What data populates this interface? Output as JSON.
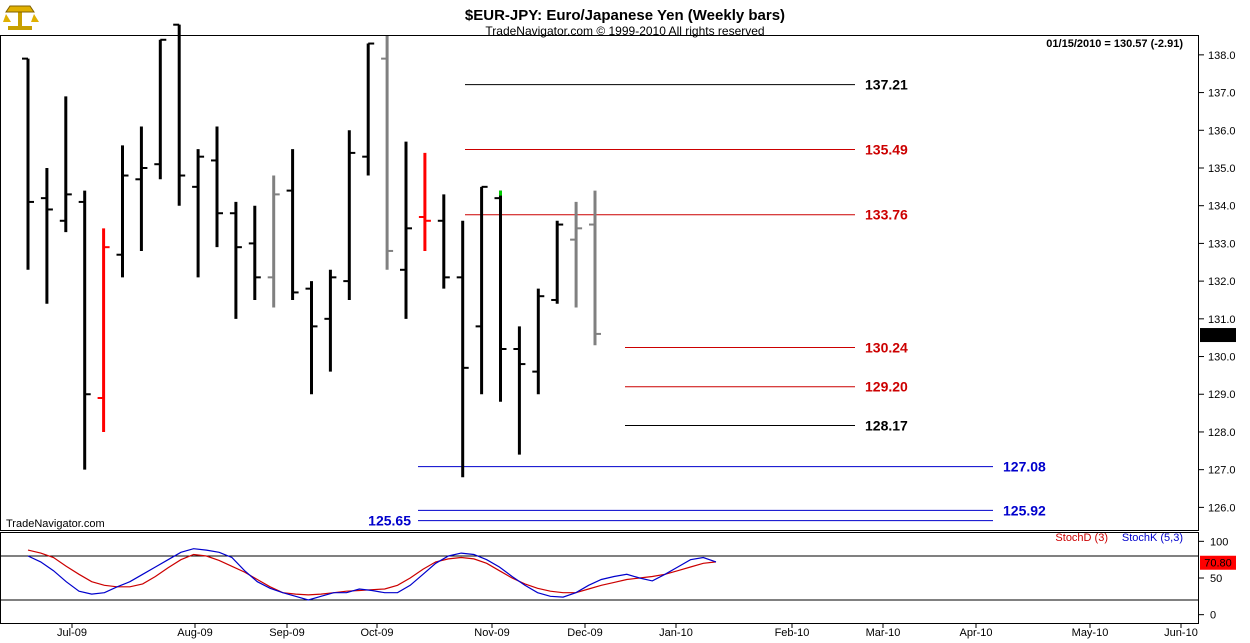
{
  "header": {
    "title": "$EUR-JPY:  Euro/Japanese Yen  (Weekly bars)",
    "subtitle": "TradeNavigator.com © 1999-2010 All rights reserved",
    "last_quote": "01/15/2010 = 130.57 (-2.91)",
    "watermark": "TradeNavigator.com",
    "logo_icon": "scales-logo-icon"
  },
  "chart_data": [
    {
      "type": "ohlc",
      "title": "$EUR-JPY:  Euro/Japanese Yen  (Weekly bars)",
      "ylim": [
        125.4,
        138.5
      ],
      "y_ticks": [
        "126.0",
        "127.0",
        "128.0",
        "129.0",
        "130.0",
        "131.0",
        "132.0",
        "133.0",
        "134.0",
        "135.0",
        "136.0",
        "137.0",
        "138.0"
      ],
      "x_labels": [
        "Jul-09",
        "Aug-09",
        "Sep-09",
        "Oct-09",
        "Nov-09",
        "Dec-09",
        "Jan-10",
        "Feb-10",
        "Mar-10",
        "Apr-10",
        "May-10",
        "Jun-10"
      ],
      "last_price_label": "130.57",
      "colors": {
        "normal": "#000000",
        "down_reversal": "#ff0000",
        "neutral": "#808080",
        "up_mark": "#00cc00"
      },
      "bars": [
        {
          "date": "2009-06-05",
          "open": 137.9,
          "high": 137.9,
          "low": 132.3,
          "close": 134.1,
          "color": "black"
        },
        {
          "date": "2009-06-12",
          "open": 134.2,
          "high": 135.0,
          "low": 131.4,
          "close": 133.9,
          "color": "black"
        },
        {
          "date": "2009-06-19",
          "open": 133.6,
          "high": 136.9,
          "low": 133.3,
          "close": 134.3,
          "color": "black"
        },
        {
          "date": "2009-06-26",
          "open": 134.1,
          "high": 134.4,
          "low": 127.0,
          "close": 129.0,
          "color": "black"
        },
        {
          "date": "2009-07-03",
          "open": 128.9,
          "high": 133.4,
          "low": 128.0,
          "close": 132.9,
          "color": "red"
        },
        {
          "date": "2009-07-10",
          "open": 132.7,
          "high": 135.6,
          "low": 132.1,
          "close": 134.8,
          "color": "black"
        },
        {
          "date": "2009-07-17",
          "open": 134.7,
          "high": 136.1,
          "low": 132.8,
          "close": 135.0,
          "color": "black"
        },
        {
          "date": "2009-07-24",
          "open": 135.1,
          "high": 138.4,
          "low": 134.7,
          "close": 138.4,
          "color": "black"
        },
        {
          "date": "2009-07-31",
          "open": 138.8,
          "high": 138.8,
          "low": 134.0,
          "close": 134.8,
          "color": "black"
        },
        {
          "date": "2009-08-07",
          "open": 134.5,
          "high": 135.5,
          "low": 132.1,
          "close": 135.3,
          "color": "black"
        },
        {
          "date": "2009-08-14",
          "open": 135.2,
          "high": 136.1,
          "low": 132.9,
          "close": 133.8,
          "color": "black"
        },
        {
          "date": "2009-08-21",
          "open": 133.8,
          "high": 134.1,
          "low": 131.0,
          "close": 132.9,
          "color": "black"
        },
        {
          "date": "2009-08-28",
          "open": 133.0,
          "high": 134.0,
          "low": 131.5,
          "close": 132.1,
          "color": "black"
        },
        {
          "date": "2009-09-04",
          "open": 132.1,
          "high": 134.8,
          "low": 131.3,
          "close": 134.3,
          "color": "gray"
        },
        {
          "date": "2009-09-11",
          "open": 134.4,
          "high": 135.5,
          "low": 131.5,
          "close": 131.7,
          "color": "black"
        },
        {
          "date": "2009-09-18",
          "open": 131.8,
          "high": 132.0,
          "low": 129.0,
          "close": 130.8,
          "color": "black"
        },
        {
          "date": "2009-09-25",
          "open": 131.0,
          "high": 132.3,
          "low": 129.6,
          "close": 132.1,
          "color": "black"
        },
        {
          "date": "2009-10-02",
          "open": 132.0,
          "high": 136.0,
          "low": 131.5,
          "close": 135.4,
          "color": "black"
        },
        {
          "date": "2009-10-09",
          "open": 135.3,
          "high": 138.3,
          "low": 134.8,
          "close": 138.3,
          "color": "black"
        },
        {
          "date": "2009-10-16",
          "open": 137.9,
          "high": 138.5,
          "low": 132.3,
          "close": 132.8,
          "color": "gray"
        },
        {
          "date": "2009-10-23",
          "open": 132.3,
          "high": 135.7,
          "low": 131.0,
          "close": 133.4,
          "color": "black"
        },
        {
          "date": "2009-10-30",
          "open": 133.7,
          "high": 135.4,
          "low": 132.8,
          "close": 133.6,
          "color": "red"
        },
        {
          "date": "2009-11-06",
          "open": 133.6,
          "high": 134.3,
          "low": 131.8,
          "close": 132.1,
          "color": "black"
        },
        {
          "date": "2009-11-13",
          "open": 132.1,
          "high": 133.6,
          "low": 126.8,
          "close": 129.7,
          "color": "black"
        },
        {
          "date": "2009-11-20",
          "open": 130.8,
          "high": 134.5,
          "low": 129.0,
          "close": 134.5,
          "color": "black"
        },
        {
          "date": "2009-11-27",
          "open": 134.2,
          "high": 134.4,
          "low": 128.8,
          "close": 130.2,
          "color": "black"
        },
        {
          "date": "2009-12-04",
          "open": 130.2,
          "high": 130.8,
          "low": 127.4,
          "close": 129.8,
          "color": "black"
        },
        {
          "date": "2009-12-11",
          "open": 129.6,
          "high": 131.8,
          "low": 129.0,
          "close": 131.6,
          "color": "black"
        },
        {
          "date": "2009-12-18",
          "open": 131.5,
          "high": 133.6,
          "low": 131.4,
          "close": 133.5,
          "color": "black"
        },
        {
          "date": "2009-12-25",
          "open": 133.1,
          "high": 134.1,
          "low": 131.3,
          "close": 133.4,
          "color": "gray"
        },
        {
          "date": "2010-01-01",
          "open": 133.5,
          "high": 134.4,
          "low": 130.3,
          "close": 130.6,
          "color": "gray"
        }
      ],
      "levels": [
        {
          "value": 137.21,
          "label": "137.21",
          "color": "#000000",
          "label_side": "right"
        },
        {
          "value": 135.49,
          "label": "135.49",
          "color": "#cc0000",
          "label_side": "right"
        },
        {
          "value": 133.76,
          "label": "133.76",
          "color": "#cc0000",
          "label_side": "right"
        },
        {
          "value": 130.24,
          "label": "130.24",
          "color": "#cc0000",
          "label_side": "right"
        },
        {
          "value": 129.2,
          "label": "129.20",
          "color": "#cc0000",
          "label_side": "right"
        },
        {
          "value": 128.17,
          "label": "128.17",
          "color": "#000000",
          "label_side": "right"
        },
        {
          "value": 127.08,
          "label": "127.08",
          "color": "#0000cc",
          "label_side": "far-right"
        },
        {
          "value": 125.92,
          "label": "125.92",
          "color": "#0000cc",
          "label_side": "far-right"
        },
        {
          "value": 125.65,
          "label": "125.65",
          "color": "#0000cc",
          "label_side": "left"
        }
      ]
    },
    {
      "type": "line",
      "ylim": [
        -10,
        110
      ],
      "y_ticks": [
        "0",
        "50",
        "100"
      ],
      "reference_lines": [
        20,
        80
      ],
      "last_value_label": "70.80",
      "series": [
        {
          "name": "StochD (3)",
          "color": "#cc0000",
          "values": [
            88,
            84,
            78,
            66,
            55,
            45,
            40,
            38,
            38,
            42,
            52,
            64,
            75,
            82,
            80,
            74,
            66,
            58,
            48,
            38,
            30,
            28,
            27,
            28,
            30,
            32,
            33,
            34,
            35,
            40,
            50,
            62,
            72,
            76,
            78,
            76,
            70,
            60,
            50,
            42,
            36,
            32,
            30,
            30,
            35,
            40,
            44,
            48,
            50,
            52,
            55,
            60,
            65,
            70,
            72
          ]
        },
        {
          "name": "StochK (5,3)",
          "color": "#0000cc",
          "values": [
            80,
            72,
            60,
            45,
            32,
            28,
            30,
            38,
            45,
            55,
            65,
            75,
            85,
            90,
            88,
            85,
            78,
            60,
            45,
            36,
            30,
            25,
            20,
            25,
            30,
            30,
            35,
            33,
            30,
            30,
            40,
            55,
            70,
            80,
            84,
            82,
            75,
            65,
            52,
            40,
            30,
            25,
            24,
            30,
            40,
            48,
            52,
            55,
            50,
            46,
            55,
            65,
            75,
            78,
            72
          ]
        }
      ]
    }
  ]
}
